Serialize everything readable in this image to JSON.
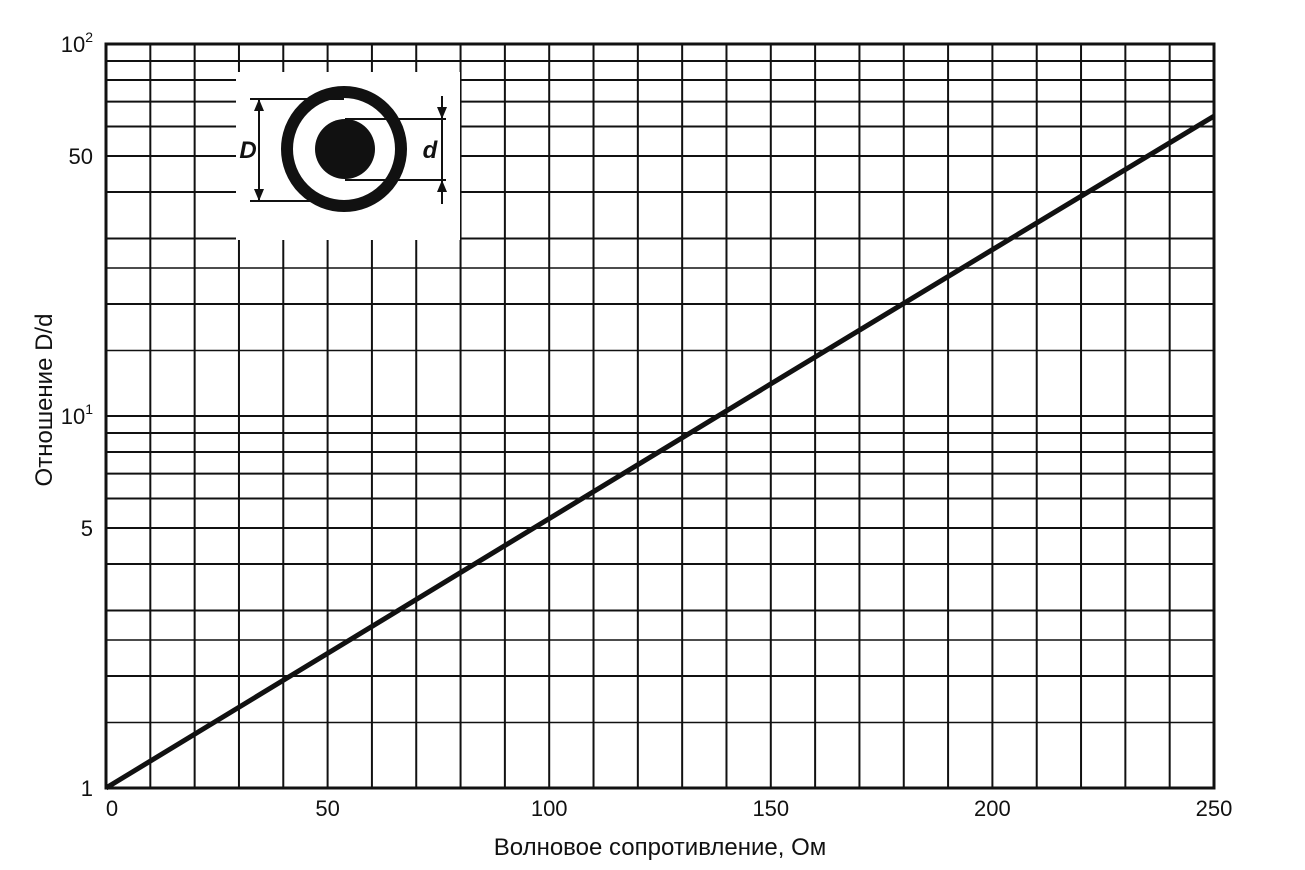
{
  "chart_data": {
    "type": "line",
    "title": "",
    "xlabel": "Волновое сопротивление, Ом",
    "ylabel": "Отношение D/d",
    "xlim": [
      0,
      250
    ],
    "ylim": [
      1,
      100
    ],
    "yscale": "log",
    "grid": true,
    "x_ticks": [
      "0",
      "50",
      "100",
      "150",
      "200",
      "250"
    ],
    "y_ticks": [
      {
        "base": "1",
        "exp": ""
      },
      {
        "base": "5",
        "exp": ""
      },
      {
        "base": "10",
        "exp": "1"
      },
      {
        "base": "50",
        "exp": ""
      },
      {
        "base": "10",
        "exp": "2"
      }
    ],
    "series": [
      {
        "x": [
          0,
          50,
          100,
          150,
          200,
          250
        ],
        "y": [
          1.0,
          2.3,
          5.3,
          12.2,
          28.0,
          64.0
        ]
      }
    ],
    "inset": {
      "outer_label": "D",
      "inner_label": "d"
    }
  }
}
